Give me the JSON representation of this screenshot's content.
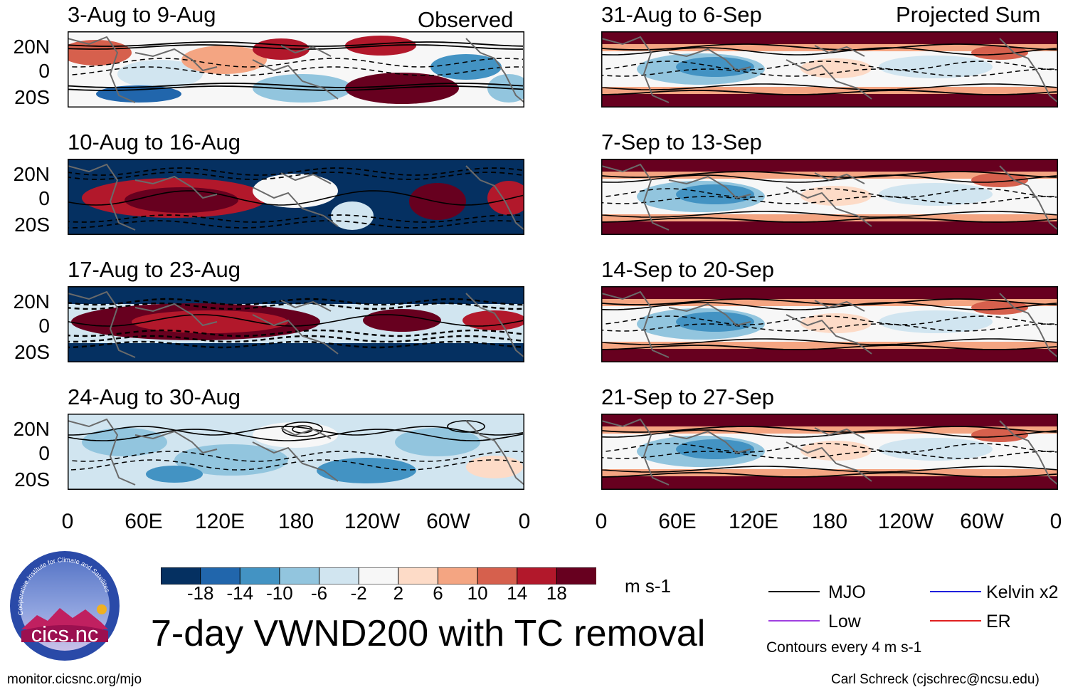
{
  "chart_data": {
    "type": "heatmap",
    "title": "7-day VWND200 with TC removal",
    "units": "m s-1",
    "colorbar": {
      "ticks": [
        "-18",
        "-14",
        "-10",
        "-6",
        "-2",
        "2",
        "6",
        "10",
        "14",
        "18"
      ],
      "colors": [
        "#053061",
        "#2166ac",
        "#4393c3",
        "#92c5de",
        "#d1e5f0",
        "#f7f7f7",
        "#fddbc7",
        "#f4a582",
        "#d6604d",
        "#b2182b",
        "#67001f"
      ]
    },
    "y_ticks": [
      "20N",
      "0",
      "20S"
    ],
    "x_ticks": [
      "0",
      "60E",
      "120E",
      "180",
      "120W",
      "60W",
      "0"
    ],
    "columns": {
      "left": "Observed",
      "right": "Projected Sum"
    },
    "panels": [
      {
        "title": "3-Aug to 9-Aug",
        "column": "left"
      },
      {
        "title": "10-Aug to 16-Aug",
        "column": "left"
      },
      {
        "title": "17-Aug to 23-Aug",
        "column": "left"
      },
      {
        "title": "24-Aug to 30-Aug",
        "column": "left"
      },
      {
        "title": "31-Aug to 6-Sep",
        "column": "right"
      },
      {
        "title": "7-Sep to 13-Sep",
        "column": "right"
      },
      {
        "title": "14-Sep to 20-Sep",
        "column": "right"
      },
      {
        "title": "21-Sep to 27-Sep",
        "column": "right"
      }
    ],
    "legend": [
      {
        "label": "MJO",
        "color": "#000000"
      },
      {
        "label": "Kelvin x2",
        "color": "#1f1fdc"
      },
      {
        "label": "Low",
        "color": "#a040e0"
      },
      {
        "label": "ER",
        "color": "#e02020"
      }
    ],
    "contour_note": "Contours every 4 m s-1"
  },
  "logo": {
    "text": "cics.nc",
    "ring_text": "Cooperative Institute for Climate and Satellites"
  },
  "footer": {
    "left": "monitor.cicsnc.org/mjo",
    "right": "Carl Schreck (cjschrec@ncsu.edu)"
  }
}
